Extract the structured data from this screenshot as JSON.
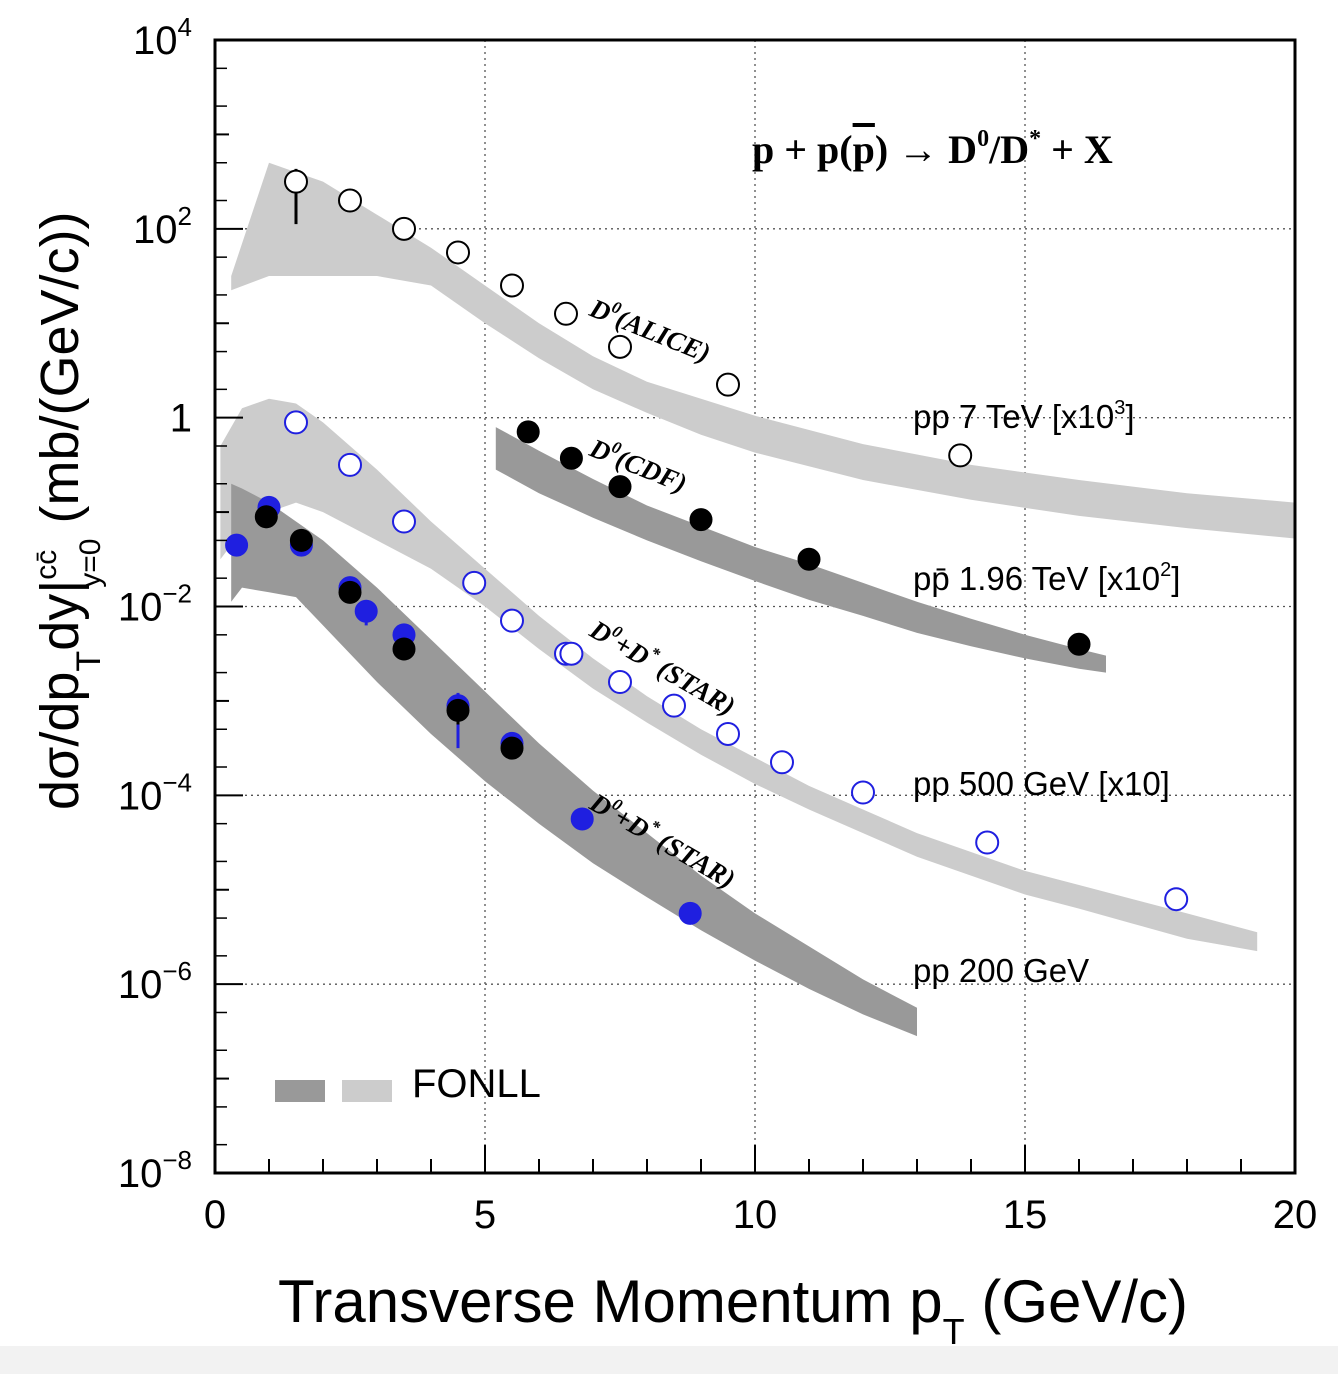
{
  "chart_data": {
    "type": "scatter",
    "title": "",
    "reaction": {
      "lhs": "p + p(",
      "pbar": "p",
      "arrow": ") → D",
      "d0sup": "0",
      "slash": "/D",
      "dstarsup": "*",
      "rhs": " + X"
    },
    "xlabel": {
      "main": "Transverse Momentum p",
      "sub": "T",
      "unit": " (GeV/c)"
    },
    "ylabel": {
      "a": "dσ/dp",
      "b": "T",
      "c": "dy|",
      "sup": "cc̄",
      "sub": "y=0",
      "d": "  (mb/(GeV/c))"
    },
    "xlim": [
      0,
      20
    ],
    "ylim_log10": [
      -8,
      4
    ],
    "x_ticks": [
      "0",
      "5",
      "10",
      "15",
      "20"
    ],
    "y_ticks": [
      {
        "exp": -8,
        "base": "10",
        "sup": "−8"
      },
      {
        "exp": -6,
        "base": "10",
        "sup": "−6"
      },
      {
        "exp": -4,
        "base": "10",
        "sup": "−4"
      },
      {
        "exp": -2,
        "base": "10",
        "sup": "−2"
      },
      {
        "exp": 0,
        "base": "1",
        "sup": ""
      },
      {
        "exp": 2,
        "base": "10",
        "sup": "2"
      },
      {
        "exp": 4,
        "base": "10",
        "sup": "4"
      }
    ],
    "grid": true,
    "legend": {
      "label": "FONLL",
      "position": "bottom-left"
    },
    "bands": [
      {
        "name": "pp 7 TeV",
        "color": "#cccccc",
        "upper": [
          [
            0.3,
            1.5
          ],
          [
            1.0,
            2.7
          ],
          [
            1.5,
            2.6
          ],
          [
            2.0,
            2.5
          ],
          [
            3.0,
            2.15
          ],
          [
            4.0,
            1.8
          ],
          [
            5.0,
            1.4
          ],
          [
            6.0,
            1.0
          ],
          [
            7.0,
            0.65
          ],
          [
            8.0,
            0.38
          ],
          [
            9.0,
            0.2
          ],
          [
            10.0,
            0.02
          ],
          [
            12.0,
            -0.28
          ],
          [
            14.0,
            -0.5
          ],
          [
            16.0,
            -0.66
          ],
          [
            18.0,
            -0.8
          ],
          [
            20.0,
            -0.9
          ]
        ],
        "lower": [
          [
            20.0,
            -1.28
          ],
          [
            18.0,
            -1.17
          ],
          [
            16.0,
            -1.04
          ],
          [
            14.0,
            -0.87
          ],
          [
            12.0,
            -0.66
          ],
          [
            10.0,
            -0.37
          ],
          [
            9.0,
            -0.18
          ],
          [
            8.0,
            0.05
          ],
          [
            7.0,
            0.3
          ],
          [
            6.0,
            0.63
          ],
          [
            5.0,
            1.0
          ],
          [
            4.0,
            1.4
          ],
          [
            3.0,
            1.5
          ],
          [
            2.0,
            1.5
          ],
          [
            1.0,
            1.5
          ],
          [
            0.3,
            1.35
          ]
        ]
      },
      {
        "name": "pp̄ 1.96 TeV",
        "color": "#999999",
        "upper": [
          [
            5.2,
            -0.1
          ],
          [
            6.0,
            -0.35
          ],
          [
            7.0,
            -0.65
          ],
          [
            8.0,
            -0.93
          ],
          [
            9.0,
            -1.15
          ],
          [
            10.0,
            -1.37
          ],
          [
            11.0,
            -1.55
          ],
          [
            12.0,
            -1.75
          ],
          [
            13.0,
            -1.95
          ],
          [
            14.0,
            -2.13
          ],
          [
            15.0,
            -2.3
          ],
          [
            16.0,
            -2.45
          ],
          [
            16.5,
            -2.52
          ]
        ],
        "lower": [
          [
            16.5,
            -2.7
          ],
          [
            16.0,
            -2.66
          ],
          [
            15.0,
            -2.55
          ],
          [
            14.0,
            -2.42
          ],
          [
            13.0,
            -2.28
          ],
          [
            12.0,
            -2.1
          ],
          [
            11.0,
            -1.93
          ],
          [
            10.0,
            -1.73
          ],
          [
            9.0,
            -1.52
          ],
          [
            8.0,
            -1.3
          ],
          [
            7.0,
            -1.06
          ],
          [
            6.0,
            -0.8
          ],
          [
            5.2,
            -0.55
          ]
        ]
      },
      {
        "name": "pp 500 GeV",
        "color": "#cccccc",
        "upper": [
          [
            0.1,
            -0.3
          ],
          [
            0.5,
            0.1
          ],
          [
            1.0,
            0.2
          ],
          [
            1.5,
            0.15
          ],
          [
            2.0,
            -0.05
          ],
          [
            3.0,
            -0.55
          ],
          [
            4.0,
            -1.1
          ],
          [
            5.0,
            -1.6
          ],
          [
            6.0,
            -2.1
          ],
          [
            7.0,
            -2.55
          ],
          [
            8.0,
            -2.95
          ],
          [
            9.0,
            -3.3
          ],
          [
            10.0,
            -3.6
          ],
          [
            11.0,
            -3.9
          ],
          [
            12.0,
            -4.15
          ],
          [
            13.0,
            -4.4
          ],
          [
            14.0,
            -4.6
          ],
          [
            15.0,
            -4.8
          ],
          [
            16.0,
            -4.95
          ],
          [
            17.0,
            -5.1
          ],
          [
            18.0,
            -5.25
          ],
          [
            19.3,
            -5.45
          ]
        ],
        "lower": [
          [
            19.3,
            -5.65
          ],
          [
            18.0,
            -5.52
          ],
          [
            17.0,
            -5.36
          ],
          [
            16.0,
            -5.2
          ],
          [
            15.0,
            -5.05
          ],
          [
            14.0,
            -4.85
          ],
          [
            13.0,
            -4.65
          ],
          [
            12.0,
            -4.4
          ],
          [
            11.0,
            -4.15
          ],
          [
            10.0,
            -3.88
          ],
          [
            9.0,
            -3.57
          ],
          [
            8.0,
            -3.23
          ],
          [
            7.0,
            -2.87
          ],
          [
            6.0,
            -2.45
          ],
          [
            5.0,
            -2.0
          ],
          [
            4.0,
            -1.6
          ],
          [
            3.0,
            -1.3
          ],
          [
            2.0,
            -1.0
          ],
          [
            1.5,
            -0.9
          ],
          [
            1.0,
            -1.0
          ],
          [
            0.5,
            -1.2
          ],
          [
            0.1,
            -1.5
          ]
        ]
      },
      {
        "name": "pp 200 GeV",
        "color": "#999999",
        "upper": [
          [
            0.3,
            -0.7
          ],
          [
            0.5,
            -0.75
          ],
          [
            1.0,
            -0.9
          ],
          [
            1.5,
            -1.1
          ],
          [
            2.0,
            -1.3
          ],
          [
            3.0,
            -1.8
          ],
          [
            4.0,
            -2.35
          ],
          [
            5.0,
            -2.9
          ],
          [
            6.0,
            -3.45
          ],
          [
            7.0,
            -3.95
          ],
          [
            8.0,
            -4.4
          ],
          [
            9.0,
            -4.85
          ],
          [
            10.0,
            -5.25
          ],
          [
            11.0,
            -5.6
          ],
          [
            12.0,
            -5.95
          ],
          [
            13.0,
            -6.25
          ]
        ],
        "lower": [
          [
            13.0,
            -6.55
          ],
          [
            12.0,
            -6.32
          ],
          [
            11.0,
            -6.05
          ],
          [
            10.0,
            -5.75
          ],
          [
            9.0,
            -5.43
          ],
          [
            8.0,
            -5.08
          ],
          [
            7.0,
            -4.72
          ],
          [
            6.0,
            -4.3
          ],
          [
            5.0,
            -3.85
          ],
          [
            4.0,
            -3.35
          ],
          [
            3.0,
            -2.8
          ],
          [
            2.0,
            -2.2
          ],
          [
            1.5,
            -1.9
          ],
          [
            1.0,
            -1.85
          ],
          [
            0.5,
            -1.8
          ],
          [
            0.3,
            -1.95
          ]
        ]
      }
    ],
    "series": [
      {
        "label": "D0(ALICE)",
        "marker": "open",
        "color": "#000000",
        "x": [
          1.5,
          2.5,
          3.5,
          4.5,
          5.5,
          6.5,
          7.5,
          9.5,
          13.8
        ],
        "log10_y": [
          2.5,
          2.3,
          2.0,
          1.75,
          1.4,
          1.1,
          0.75,
          0.35,
          -0.4
        ],
        "err": [
          0.45,
          0.1,
          0,
          0,
          0,
          0,
          0,
          0,
          0
        ]
      },
      {
        "label": "D0(CDF)",
        "marker": "filled",
        "color": "#000000",
        "x": [
          5.8,
          6.6,
          7.5,
          9.0,
          11.0,
          16.0
        ],
        "log10_y": [
          -0.15,
          -0.43,
          -0.73,
          -1.08,
          -1.5,
          -2.4
        ],
        "err": [
          0,
          0,
          0,
          0,
          0,
          0
        ]
      },
      {
        "label": "D0+D*(STAR) 500 GeV",
        "marker": "open",
        "color": "#1f1fe0",
        "x": [
          1.5,
          2.5,
          3.5,
          4.8,
          5.5,
          6.5,
          6.6,
          7.5,
          8.5,
          9.5,
          10.5,
          12.0,
          14.3,
          17.8
        ],
        "log10_y": [
          -0.05,
          -0.5,
          -1.1,
          -1.75,
          -2.15,
          -2.5,
          -2.5,
          -2.8,
          -3.05,
          -3.35,
          -3.65,
          -3.97,
          -4.5,
          -5.1
        ],
        "err": [
          0,
          0,
          0,
          0,
          0,
          0,
          0,
          0,
          0,
          0,
          0,
          0,
          0,
          0
        ]
      },
      {
        "label": "D0+D*(STAR) 200 GeV (D0)",
        "marker": "filled",
        "color": "#1f1fe0",
        "x": [
          0.4,
          1.0,
          1.6,
          2.5,
          2.8,
          3.5,
          4.5,
          5.5,
          6.8,
          8.8
        ],
        "log10_y": [
          -1.35,
          -0.95,
          -1.35,
          -1.8,
          -2.05,
          -2.3,
          -3.05,
          -3.45,
          -4.25,
          -5.25
        ],
        "err": [
          0,
          0,
          0,
          0,
          0.15,
          0,
          0.45,
          0,
          0,
          0
        ]
      },
      {
        "label": "D0+D*(STAR) 200 GeV (D*)",
        "marker": "filled",
        "color": "#000000",
        "x": [
          0.95,
          1.6,
          2.5,
          3.5,
          4.5,
          5.5
        ],
        "log10_y": [
          -1.05,
          -1.3,
          -1.85,
          -2.45,
          -3.1,
          -3.5
        ],
        "err": [
          0.12,
          0.1,
          0.1,
          0.12,
          0.15,
          0.12
        ]
      }
    ],
    "annotations": [
      {
        "main": "D",
        "sup": "0",
        "rest": "(ALICE)"
      },
      {
        "main": "D",
        "sup": "0",
        "rest": "(CDF)"
      },
      {
        "main": "D",
        "sup": "0",
        "mid": "+D",
        "sup2": "*",
        "rest": " (STAR)"
      },
      {
        "main": "D",
        "sup": "0",
        "mid": "+D",
        "sup2": "*",
        "rest": " (STAR)"
      }
    ],
    "energy_labels": [
      {
        "text": "pp 7 TeV [x10",
        "sup": "3",
        "end": "]"
      },
      {
        "text": "pp̄ 1.96 TeV [x10",
        "sup": "2",
        "end": "]"
      },
      {
        "text": "pp 500 GeV [x10]",
        "sup": "",
        "end": ""
      },
      {
        "text": "pp 200 GeV",
        "sup": "",
        "end": ""
      }
    ]
  }
}
